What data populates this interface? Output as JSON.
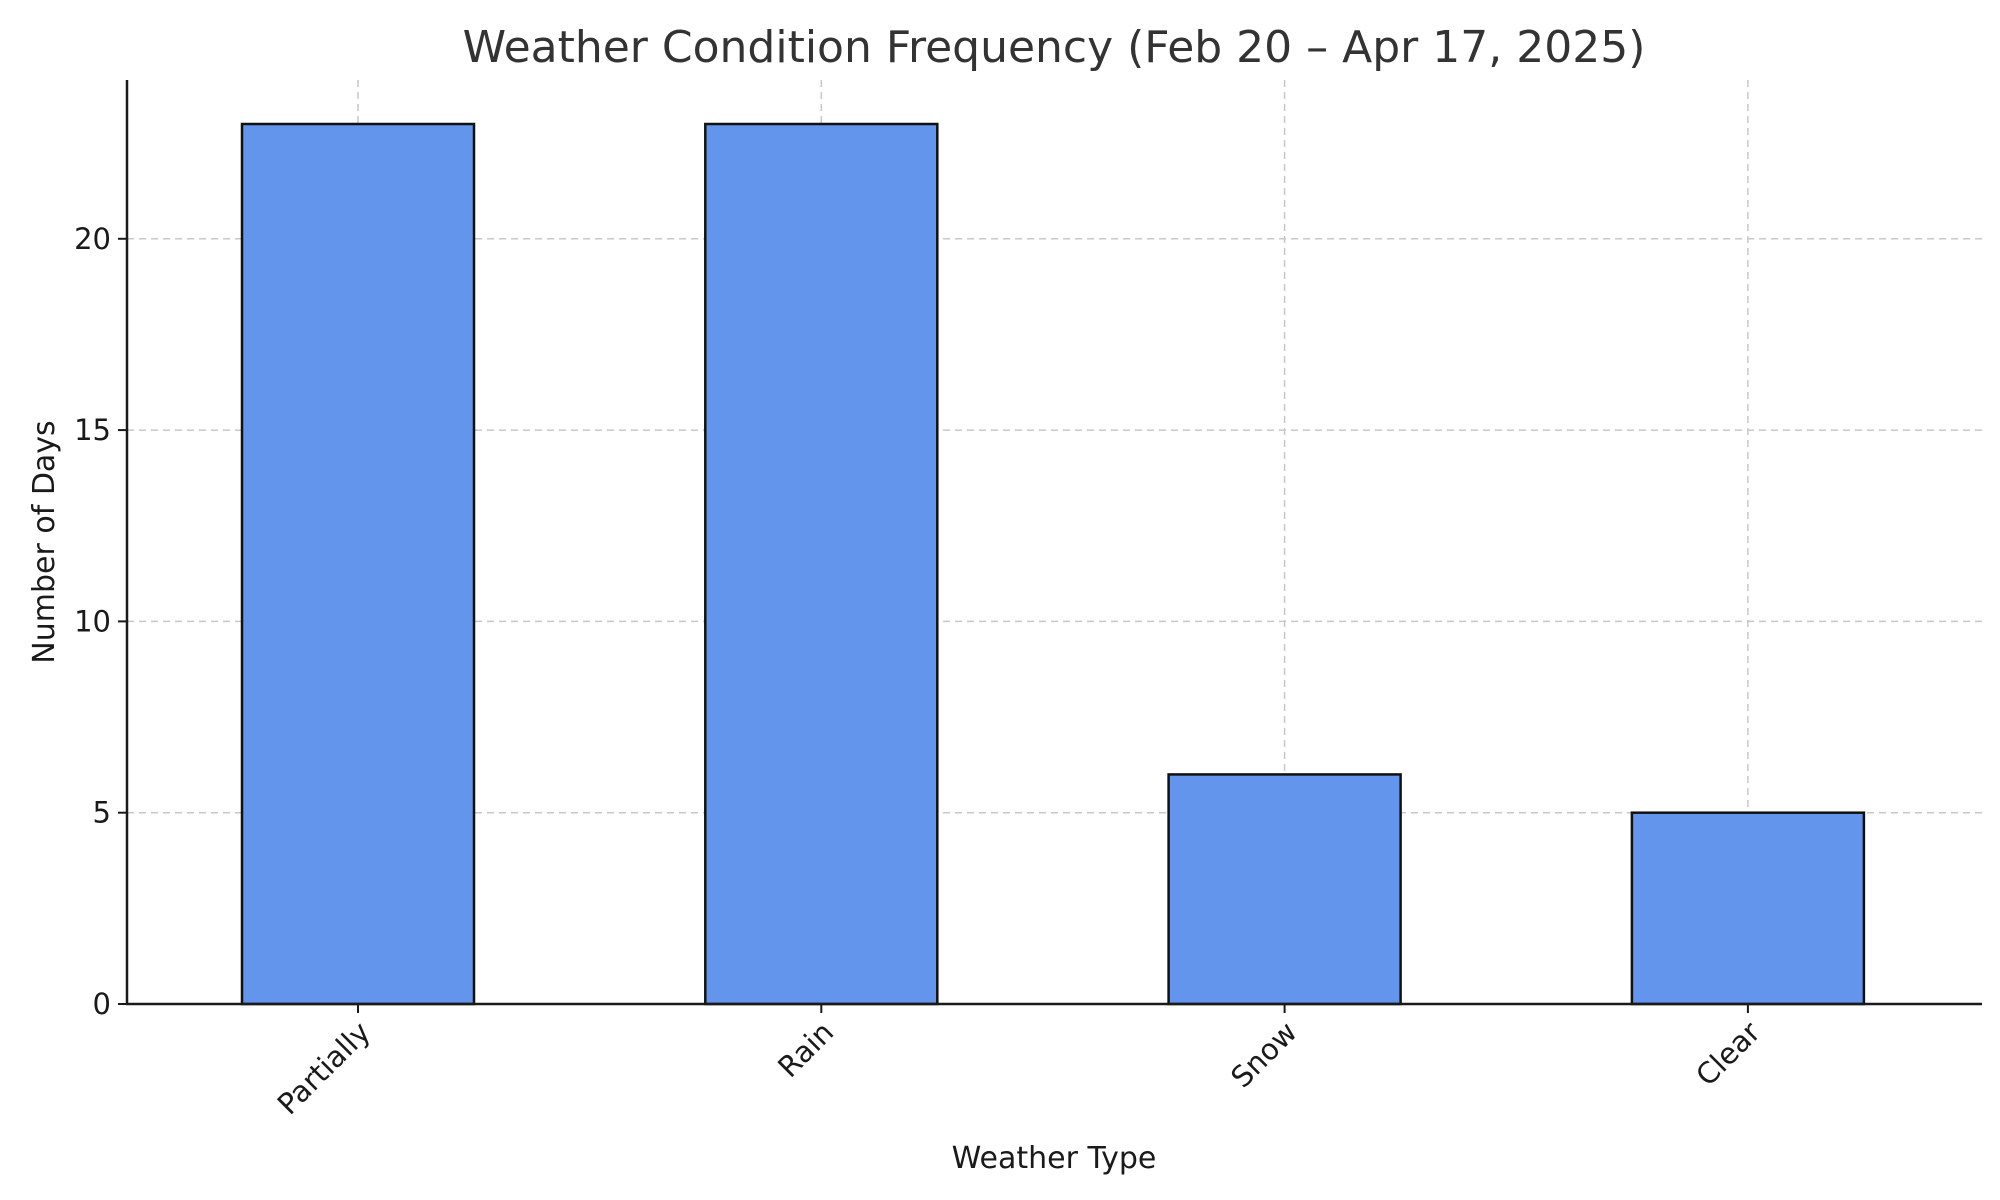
{
  "chart_data": {
    "type": "bar",
    "title": "Weather Condition Frequency (Feb 20 – Apr 17, 2025)",
    "xlabel": "Weather Type",
    "ylabel": "Number of Days",
    "categories": [
      "Partially",
      "Rain",
      "Snow",
      "Clear"
    ],
    "values": [
      23,
      23,
      6,
      5
    ],
    "ylim": [
      0,
      24.15
    ],
    "yticks": [
      0,
      5,
      10,
      15,
      20
    ],
    "grid": true,
    "bar_color": "#6495ED",
    "bar_edge_color": "#111111"
  }
}
